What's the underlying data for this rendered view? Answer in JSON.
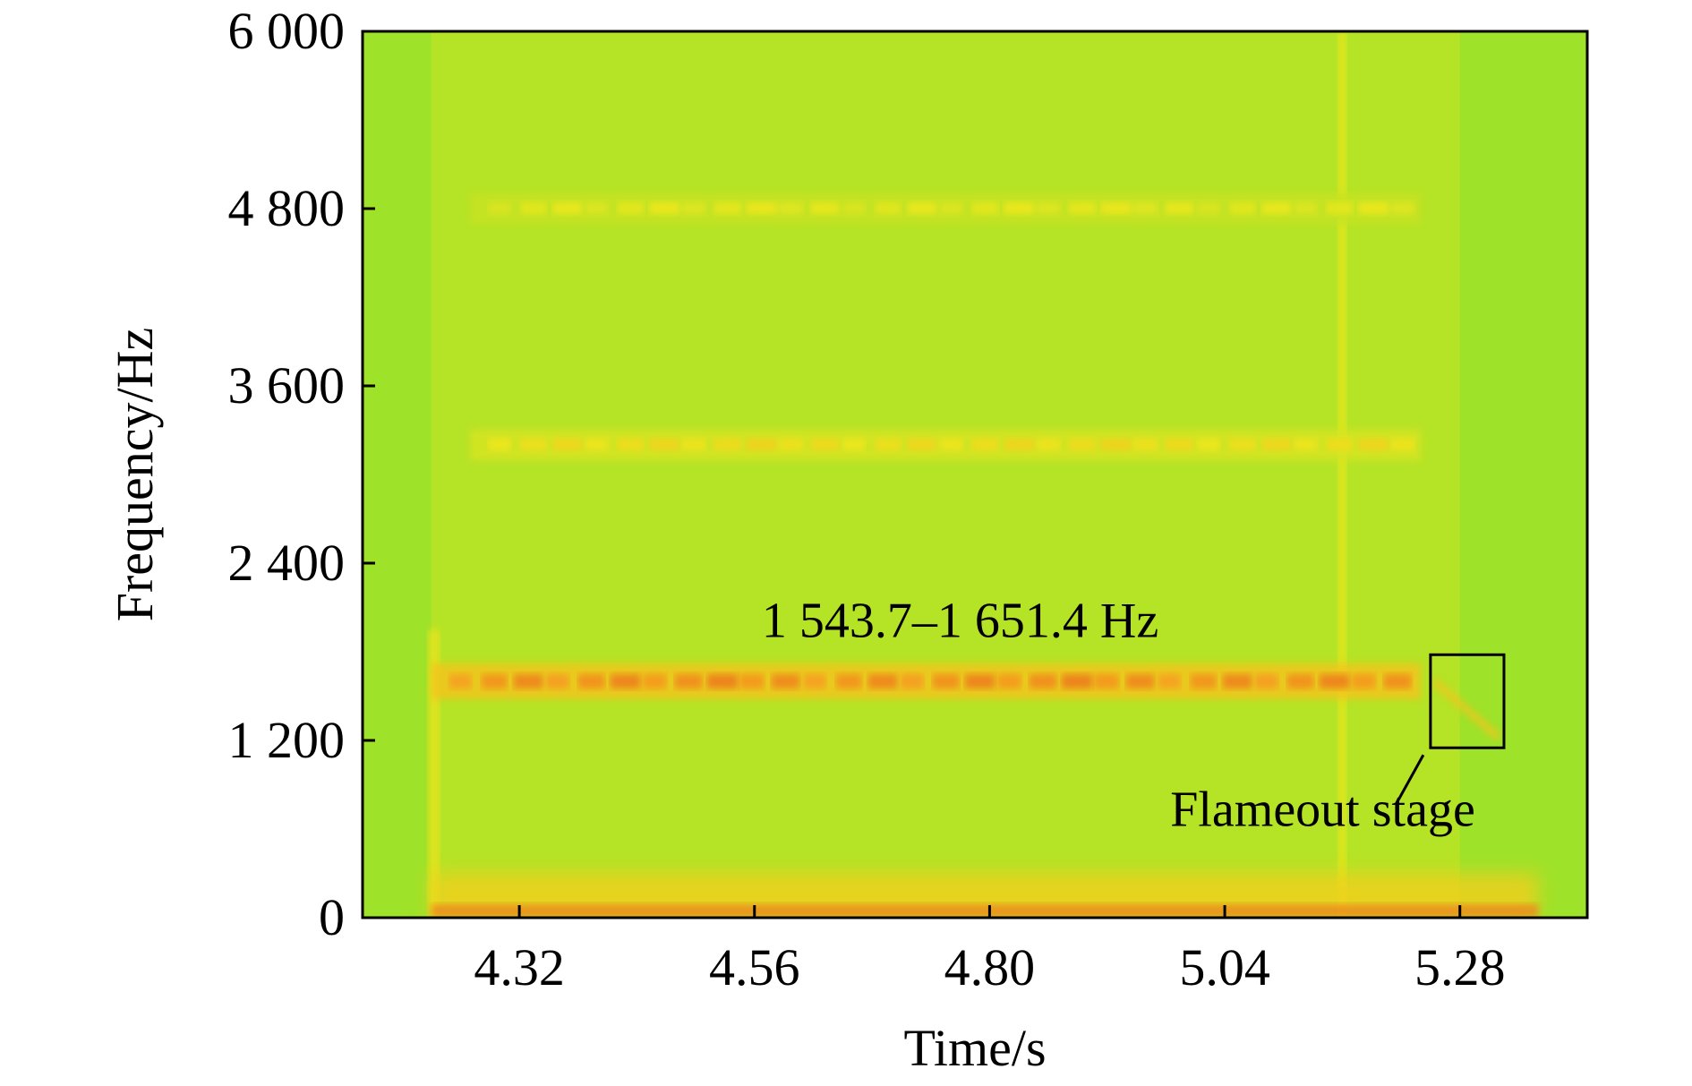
{
  "chart_data": {
    "type": "heatmap",
    "title": "",
    "xlabel": "Time/s",
    "ylabel": "Frequency/Hz",
    "xlim": [
      4.16,
      5.41
    ],
    "ylim": [
      0,
      6000
    ],
    "xticks": [
      4.32,
      4.56,
      4.8,
      5.04,
      5.28
    ],
    "xtick_labels": [
      "4.32",
      "4.56",
      "4.80",
      "5.04",
      "5.28"
    ],
    "yticks": [
      0,
      1200,
      2400,
      3600,
      4800,
      6000
    ],
    "ytick_labels": [
      "0",
      "1 200",
      "2 400",
      "3 600",
      "4 800",
      "6 000"
    ],
    "colormap": [
      "#8fdc2a",
      "#f0e81e",
      "#f7a020",
      "#e8671c"
    ],
    "background_color": "#9ee22a",
    "signal_start_time": 4.23,
    "signal_end_time": 5.28,
    "bands": [
      {
        "frequency": 1600,
        "intensity": 0.9,
        "start": 4.23,
        "end": 5.24
      },
      {
        "frequency": 3200,
        "intensity": 0.45,
        "start": 4.27,
        "end": 5.24
      },
      {
        "frequency": 4800,
        "intensity": 0.35,
        "start": 4.27,
        "end": 5.24
      }
    ],
    "low_frequency_intensity": 0.85,
    "vertical_line_time": 5.16,
    "annotations": {
      "band_label": "1 543.7–1 651.4 Hz",
      "flameout_label": "Flameout stage",
      "flameout_box": {
        "t0": 5.25,
        "t1": 5.325,
        "f0": 1150,
        "f1": 1780
      }
    }
  }
}
